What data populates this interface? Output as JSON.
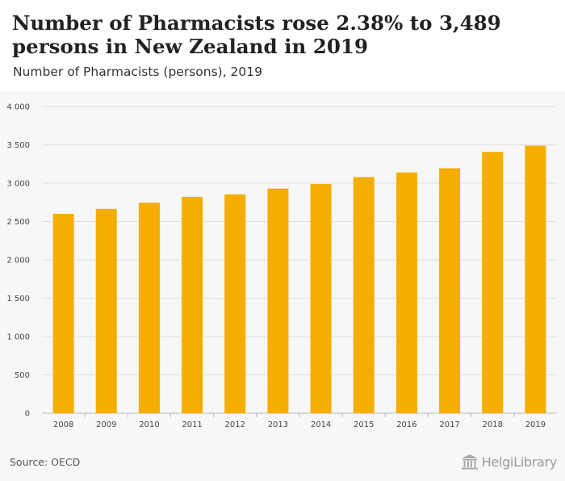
{
  "header": {
    "title": "Number of Pharmacists rose 2.38% to 3,489 persons in New Zealand in 2019",
    "subtitle": "Number of Pharmacists (persons), 2019"
  },
  "footer": {
    "source": "Source: OECD",
    "brand_name": "HelgiLibrary",
    "brand_icon": "library-building-icon"
  },
  "colors": {
    "bar": "#f5ad00",
    "grid": "#dddddd",
    "background": "#f7f7f7"
  },
  "chart_data": {
    "type": "bar",
    "categories": [
      "2008",
      "2009",
      "2010",
      "2011",
      "2012",
      "2013",
      "2014",
      "2015",
      "2016",
      "2017",
      "2018",
      "2019"
    ],
    "values": [
      2600,
      2665,
      2745,
      2822,
      2855,
      2930,
      2990,
      3080,
      3140,
      3195,
      3408,
      3489
    ],
    "y_ticks": [
      "0",
      "500",
      "1 000",
      "1 500",
      "2 000",
      "2 500",
      "3 000",
      "3 500",
      "4 000"
    ],
    "ylim": [
      0,
      4000
    ],
    "grid": true,
    "legend": "none"
  }
}
